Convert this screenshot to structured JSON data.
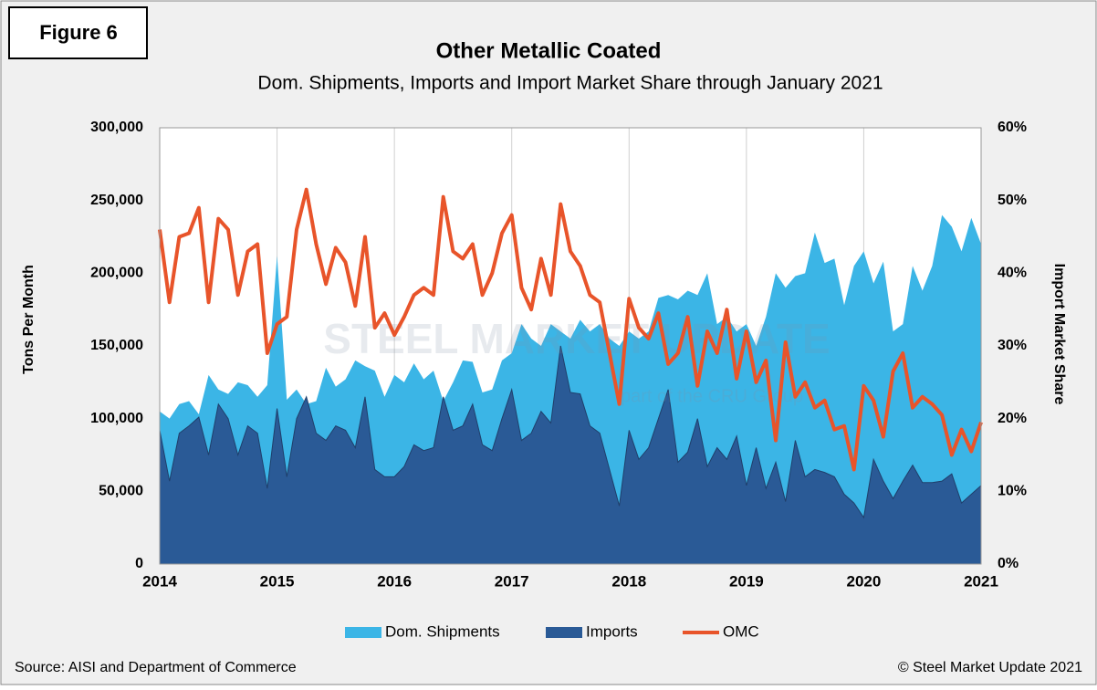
{
  "figure_label": "Figure 6",
  "source": "Source: AISI and Department of Commerce",
  "copyright": "© Steel Market Update 2021",
  "chart_data": {
    "type": "area",
    "title": "Other Metallic Coated",
    "subtitle": "Dom. Shipments, Imports and Import Market Share through January 2021",
    "watermark": "STEEL MARKET UPDATE",
    "watermark_tagline": "part of the CRU Group",
    "y_label": "Tons Per Month",
    "y2_label": "Import Market Share",
    "categories": [
      "2014",
      null,
      null,
      null,
      null,
      null,
      null,
      null,
      null,
      null,
      null,
      null,
      "2015",
      null,
      null,
      null,
      null,
      null,
      null,
      null,
      null,
      null,
      null,
      null,
      "2016",
      null,
      null,
      null,
      null,
      null,
      null,
      null,
      null,
      null,
      null,
      null,
      "2017",
      null,
      null,
      null,
      null,
      null,
      null,
      null,
      null,
      null,
      null,
      null,
      "2018",
      null,
      null,
      null,
      null,
      null,
      null,
      null,
      null,
      null,
      null,
      null,
      "2019",
      null,
      null,
      null,
      null,
      null,
      null,
      null,
      null,
      null,
      null,
      null,
      "2020",
      null,
      null,
      null,
      null,
      null,
      null,
      null,
      null,
      null,
      null,
      null,
      "2021"
    ],
    "ylim": [
      0,
      300000
    ],
    "yticks": [
      0,
      {
        "value": 50000,
        "label": "50,000"
      },
      {
        "value": 100000,
        "label": "100,000"
      },
      {
        "value": 150000,
        "label": "150,000"
      },
      {
        "value": 200000,
        "label": "200,000"
      },
      {
        "value": 250000,
        "label": "250,000"
      },
      {
        "value": 300000,
        "label": "300,000"
      }
    ],
    "y2lim": [
      0,
      60
    ],
    "y2ticks": [
      {
        "value": 0,
        "label": "0%"
      },
      {
        "value": 10,
        "label": "10%"
      },
      {
        "value": 20,
        "label": "20%"
      },
      {
        "value": 30,
        "label": "30%"
      },
      {
        "value": 40,
        "label": "40%"
      },
      {
        "value": 50,
        "label": "50%"
      },
      {
        "value": 60,
        "label": "60%"
      }
    ],
    "grid": true,
    "legend": "bottom",
    "series": [
      {
        "name": "Dom. Shipments",
        "type": "area",
        "color": "#3bb5e6",
        "values": [
          105000,
          100000,
          110000,
          112000,
          103000,
          130000,
          120000,
          117000,
          125000,
          123000,
          115000,
          123000,
          212000,
          113000,
          120000,
          110000,
          112000,
          135000,
          122000,
          127000,
          140000,
          136000,
          133000,
          115000,
          130000,
          125000,
          138000,
          127000,
          133000,
          112000,
          125000,
          140000,
          139000,
          118000,
          120000,
          140000,
          145000,
          165000,
          155000,
          150000,
          165000,
          160000,
          155000,
          168000,
          160000,
          165000,
          155000,
          150000,
          160000,
          155000,
          160000,
          183000,
          185000,
          182000,
          188000,
          185000,
          200000,
          165000,
          170000,
          160000,
          165000,
          150000,
          170000,
          200000,
          190000,
          198000,
          200000,
          228000,
          207000,
          210000,
          178000,
          205000,
          215000,
          193000,
          208000,
          160000,
          165000,
          205000,
          188000,
          205000,
          240000,
          232000,
          215000,
          238000,
          220000
        ]
      },
      {
        "name": "Imports",
        "type": "area",
        "color": "#2a5a96",
        "values": [
          92000,
          57000,
          90000,
          95000,
          101000,
          75000,
          110000,
          100000,
          75000,
          95000,
          90000,
          52000,
          107000,
          60000,
          100000,
          115000,
          90000,
          85000,
          95000,
          92000,
          80000,
          115000,
          65000,
          60000,
          60000,
          67000,
          82000,
          78000,
          80000,
          115000,
          92000,
          95000,
          110000,
          82000,
          78000,
          100000,
          120000,
          85000,
          90000,
          105000,
          97000,
          150000,
          118000,
          117000,
          95000,
          90000,
          65000,
          40000,
          92000,
          72000,
          80000,
          100000,
          120000,
          70000,
          77000,
          100000,
          67000,
          80000,
          72000,
          88000,
          54000,
          80000,
          52000,
          70000,
          43000,
          85000,
          60000,
          65000,
          63000,
          60000,
          48000,
          42000,
          32000,
          72000,
          57000,
          45000,
          57000,
          68000,
          56000,
          56000,
          57000,
          62000,
          42000,
          48000,
          54000
        ]
      },
      {
        "name": "OMC",
        "type": "line",
        "axis": "y2",
        "color": "#e8542a",
        "values": [
          46,
          36,
          45,
          45.5,
          49,
          36,
          47.5,
          46,
          37,
          43,
          44,
          29,
          33,
          34,
          46,
          51.5,
          44,
          38.5,
          43.5,
          41.5,
          35.5,
          45,
          32.5,
          34.5,
          31.5,
          34,
          37,
          38,
          37,
          50.5,
          43,
          42,
          44,
          37,
          40,
          45.5,
          48,
          38,
          35,
          42,
          37,
          49.5,
          43,
          41,
          37,
          36,
          29,
          22,
          36.5,
          32.5,
          31,
          34.5,
          27.5,
          29,
          34,
          24.5,
          32,
          29,
          35,
          25.5,
          32,
          25,
          28,
          17,
          30.5,
          23,
          25,
          21.5,
          22.5,
          18.5,
          19,
          13,
          24.5,
          22.5,
          17.5,
          26.5,
          29,
          21.5,
          23,
          22,
          20.5,
          15,
          18.5,
          15.5,
          19.5
        ]
      }
    ]
  }
}
